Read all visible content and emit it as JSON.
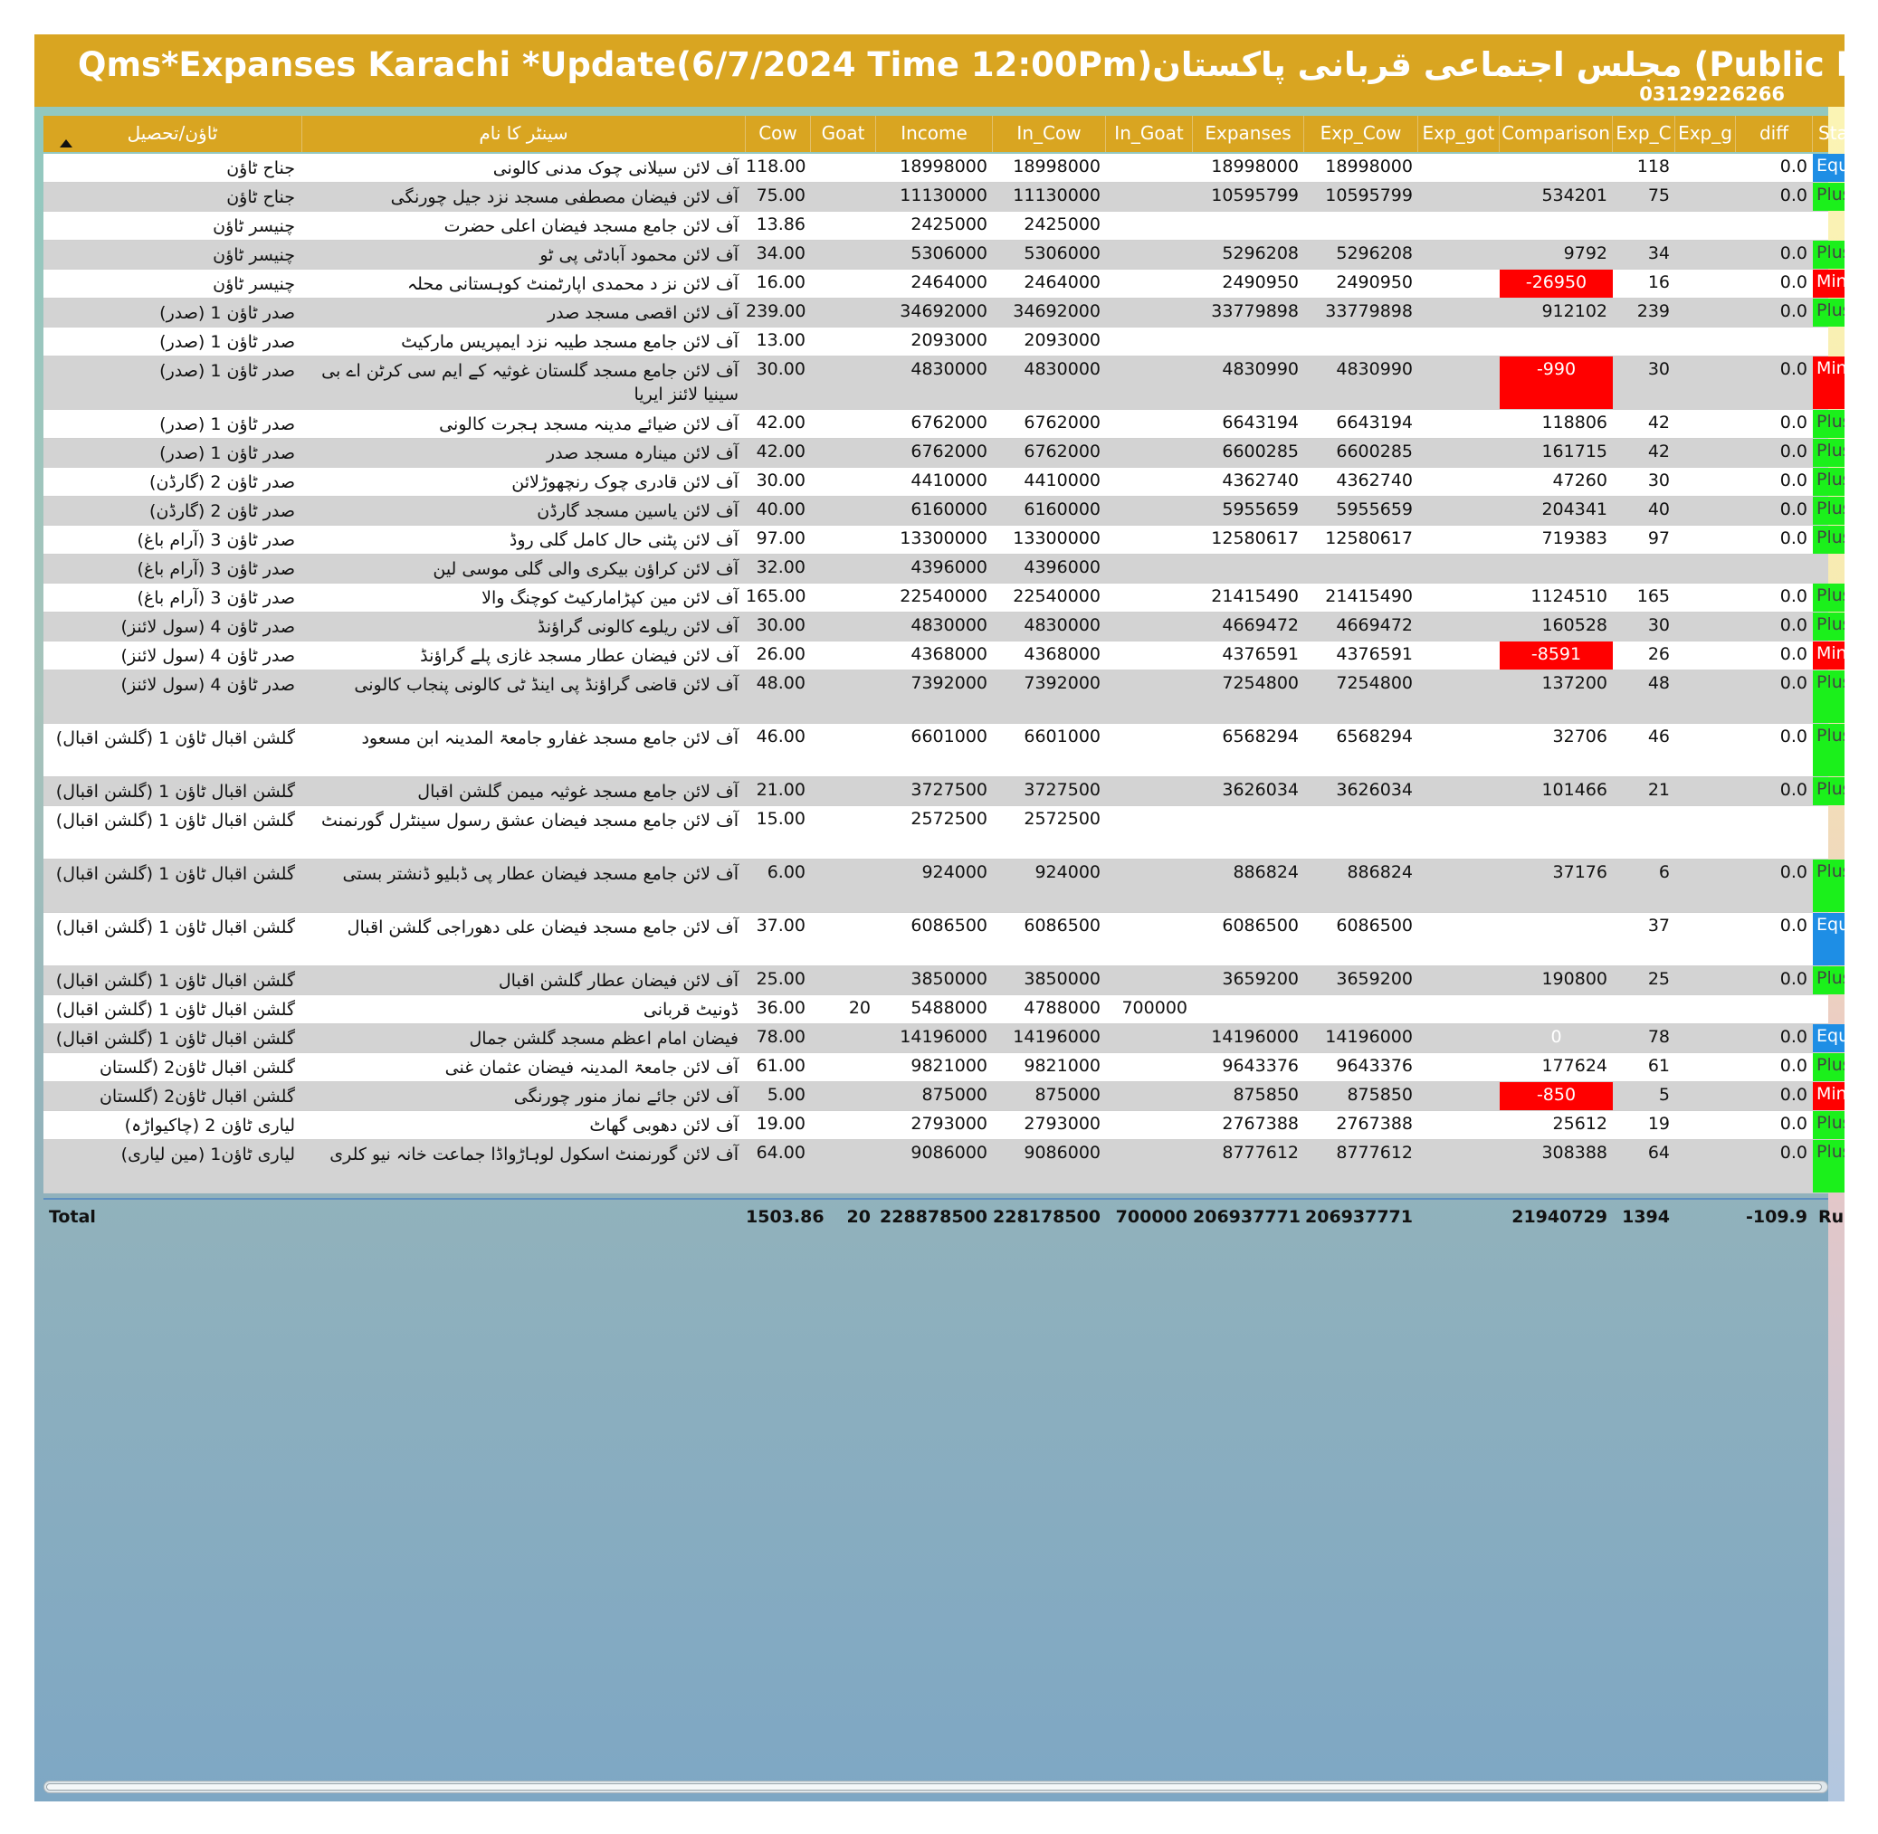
{
  "title": "Qms*Expanses Karachi  *Update(6/7/2024 Time 12:00Pm)مجلس اجتماعی قربانی پاکستان (Public Reports)*Mubeen Attari",
  "phone": "03129226266",
  "colors": {
    "header_bg": "#d9a521",
    "plus": "#1bf01b",
    "minus": "#ff0000",
    "equal": "#1e8ee5"
  },
  "columns": [
    {
      "key": "town",
      "label": "ٹاؤن/تحصیل"
    },
    {
      "key": "center",
      "label": "سینٹر کا نام"
    },
    {
      "key": "cow",
      "label": "Cow"
    },
    {
      "key": "goat",
      "label": "Goat"
    },
    {
      "key": "income",
      "label": "Income"
    },
    {
      "key": "in_cow",
      "label": "In_Cow"
    },
    {
      "key": "in_goat",
      "label": "In_Goat"
    },
    {
      "key": "expanses",
      "label": "Expanses"
    },
    {
      "key": "exp_cow",
      "label": "Exp_Cow"
    },
    {
      "key": "exp_got",
      "label": "Exp_got"
    },
    {
      "key": "comparison",
      "label": "Comparison"
    },
    {
      "key": "exp_c",
      "label": "Exp_C"
    },
    {
      "key": "exp_g",
      "label": "Exp_g"
    },
    {
      "key": "diff",
      "label": "diff"
    },
    {
      "key": "status",
      "label": "Status"
    }
  ],
  "rows": [
    {
      "town": "جناح ٹاؤن",
      "center": "آف لائن سیلانی چوک مدنی کالونی",
      "cow": "118.00",
      "goat": "",
      "income": "18998000",
      "in_cow": "18998000",
      "in_goat": "",
      "expanses": "18998000",
      "exp_cow": "18998000",
      "exp_got": "",
      "comparison": "",
      "exp_c": "118",
      "exp_g": "",
      "diff": "0.0",
      "status": "Equal"
    },
    {
      "town": "جناح ٹاؤن",
      "center": "آف لائن فیضان مصطفی مسجد نزد جیل چورنگی",
      "cow": "75.00",
      "goat": "",
      "income": "11130000",
      "in_cow": "11130000",
      "in_goat": "",
      "expanses": "10595799",
      "exp_cow": "10595799",
      "exp_got": "",
      "comparison": "534201",
      "exp_c": "75",
      "exp_g": "",
      "diff": "0.0",
      "status": "Plus"
    },
    {
      "town": "چنیسر ٹاؤن",
      "center": "آف لائن جامع مسجد فیضان اعلی حضرت",
      "cow": "13.86",
      "goat": "",
      "income": "2425000",
      "in_cow": "2425000",
      "in_goat": "",
      "expanses": "",
      "exp_cow": "",
      "exp_got": "",
      "comparison": "",
      "exp_c": "",
      "exp_g": "",
      "diff": "",
      "status": ""
    },
    {
      "town": "چنیسر ٹاؤن",
      "center": "آف لائن محمود آبادٹی پی ٹو",
      "cow": "34.00",
      "goat": "",
      "income": "5306000",
      "in_cow": "5306000",
      "in_goat": "",
      "expanses": "5296208",
      "exp_cow": "5296208",
      "exp_got": "",
      "comparison": "9792",
      "exp_c": "34",
      "exp_g": "",
      "diff": "0.0",
      "status": "Plus"
    },
    {
      "town": "چنیسر ٹاؤن",
      "center": "آف لائن نز د محمدی اپارٹمنٹ کوہستانی محلہ",
      "cow": "16.00",
      "goat": "",
      "income": "2464000",
      "in_cow": "2464000",
      "in_goat": "",
      "expanses": "2490950",
      "exp_cow": "2490950",
      "exp_got": "",
      "comparison": "-26950",
      "exp_c": "16",
      "exp_g": "",
      "diff": "0.0",
      "status": "Minus"
    },
    {
      "town": "صدر ٹاؤن 1 (صدر)",
      "center": "آف لائن اقصی مسجد صدر",
      "cow": "239.00",
      "goat": "",
      "income": "34692000",
      "in_cow": "34692000",
      "in_goat": "",
      "expanses": "33779898",
      "exp_cow": "33779898",
      "exp_got": "",
      "comparison": "912102",
      "exp_c": "239",
      "exp_g": "",
      "diff": "0.0",
      "status": "Plus"
    },
    {
      "town": "صدر ٹاؤن 1 (صدر)",
      "center": "آف لائن جامع مسجد طیبہ نزد ایمپریس مارکیٹ",
      "cow": "13.00",
      "goat": "",
      "income": "2093000",
      "in_cow": "2093000",
      "in_goat": "",
      "expanses": "",
      "exp_cow": "",
      "exp_got": "",
      "comparison": "",
      "exp_c": "",
      "exp_g": "",
      "diff": "",
      "status": ""
    },
    {
      "town": "صدر ٹاؤن 1 (صدر)",
      "center": "آف لائن جامع مسجد گلستان غوثیہ کے ایم سی کرٹن اے بی سینیا لائنز ایریا",
      "cow": "30.00",
      "goat": "",
      "income": "4830000",
      "in_cow": "4830000",
      "in_goat": "",
      "expanses": "4830990",
      "exp_cow": "4830990",
      "exp_got": "",
      "comparison": "-990",
      "exp_c": "30",
      "exp_g": "",
      "diff": "0.0",
      "status": "Minus"
    },
    {
      "town": "صدر ٹاؤن 1 (صدر)",
      "center": "آف لائن ضیائے مدینہ مسجد ہجرت کالونی",
      "cow": "42.00",
      "goat": "",
      "income": "6762000",
      "in_cow": "6762000",
      "in_goat": "",
      "expanses": "6643194",
      "exp_cow": "6643194",
      "exp_got": "",
      "comparison": "118806",
      "exp_c": "42",
      "exp_g": "",
      "diff": "0.0",
      "status": "Plus"
    },
    {
      "town": "صدر ٹاؤن 1 (صدر)",
      "center": "آف لائن مینارہ مسجد صدر",
      "cow": "42.00",
      "goat": "",
      "income": "6762000",
      "in_cow": "6762000",
      "in_goat": "",
      "expanses": "6600285",
      "exp_cow": "6600285",
      "exp_got": "",
      "comparison": "161715",
      "exp_c": "42",
      "exp_g": "",
      "diff": "0.0",
      "status": "Plus"
    },
    {
      "town": "صدر ٹاؤن 2 (گارڈن)",
      "center": "آف لائن قادری چوک رنچھوڑلائن",
      "cow": "30.00",
      "goat": "",
      "income": "4410000",
      "in_cow": "4410000",
      "in_goat": "",
      "expanses": "4362740",
      "exp_cow": "4362740",
      "exp_got": "",
      "comparison": "47260",
      "exp_c": "30",
      "exp_g": "",
      "diff": "0.0",
      "status": "Plus"
    },
    {
      "town": "صدر ٹاؤن 2 (گارڈن)",
      "center": "آف لائن یاسین مسجد گارڈن",
      "cow": "40.00",
      "goat": "",
      "income": "6160000",
      "in_cow": "6160000",
      "in_goat": "",
      "expanses": "5955659",
      "exp_cow": "5955659",
      "exp_got": "",
      "comparison": "204341",
      "exp_c": "40",
      "exp_g": "",
      "diff": "0.0",
      "status": "Plus"
    },
    {
      "town": "صدر ٹاؤن 3 (آرام باغ)",
      "center": "آف لائن پٹنی حال کامل گلی روڈ",
      "cow": "97.00",
      "goat": "",
      "income": "13300000",
      "in_cow": "13300000",
      "in_goat": "",
      "expanses": "12580617",
      "exp_cow": "12580617",
      "exp_got": "",
      "comparison": "719383",
      "exp_c": "97",
      "exp_g": "",
      "diff": "0.0",
      "status": "Plus"
    },
    {
      "town": "صدر ٹاؤن 3 (آرام باغ)",
      "center": "آف لائن کراؤن بیکری والی گلی موسی لین",
      "cow": "32.00",
      "goat": "",
      "income": "4396000",
      "in_cow": "4396000",
      "in_goat": "",
      "expanses": "",
      "exp_cow": "",
      "exp_got": "",
      "comparison": "",
      "exp_c": "",
      "exp_g": "",
      "diff": "",
      "status": ""
    },
    {
      "town": "صدر ٹاؤن 3 (آرام باغ)",
      "center": "آف لائن مین کپڑامارکیٹ کوچنگ والا",
      "cow": "165.00",
      "goat": "",
      "income": "22540000",
      "in_cow": "22540000",
      "in_goat": "",
      "expanses": "21415490",
      "exp_cow": "21415490",
      "exp_got": "",
      "comparison": "1124510",
      "exp_c": "165",
      "exp_g": "",
      "diff": "0.0",
      "status": "Plus"
    },
    {
      "town": "صدر ٹاؤن 4 (سول لائنز)",
      "center": "آف لائن ریلوے کالونی گراؤنڈ",
      "cow": "30.00",
      "goat": "",
      "income": "4830000",
      "in_cow": "4830000",
      "in_goat": "",
      "expanses": "4669472",
      "exp_cow": "4669472",
      "exp_got": "",
      "comparison": "160528",
      "exp_c": "30",
      "exp_g": "",
      "diff": "0.0",
      "status": "Plus"
    },
    {
      "town": "صدر ٹاؤن 4 (سول لائنز)",
      "center": "آف لائن فیضان عطار مسجد غازی پلے گراؤنڈ",
      "cow": "26.00",
      "goat": "",
      "income": "4368000",
      "in_cow": "4368000",
      "in_goat": "",
      "expanses": "4376591",
      "exp_cow": "4376591",
      "exp_got": "",
      "comparison": "-8591",
      "exp_c": "26",
      "exp_g": "",
      "diff": "0.0",
      "status": "Minus"
    },
    {
      "town": "صدر ٹاؤن 4 (سول لائنز)",
      "center": "آف لائن قاضی گراؤنڈ پی اینڈ ٹی کالونی پنجاب کالونی",
      "cow": "48.00",
      "goat": "",
      "income": "7392000",
      "in_cow": "7392000",
      "in_goat": "",
      "expanses": "7254800",
      "exp_cow": "7254800",
      "exp_got": "",
      "comparison": "137200",
      "exp_c": "48",
      "exp_g": "",
      "diff": "0.0",
      "status": "Plus"
    },
    {
      "town": "گلشن اقبال ٹاؤن 1 (گلشن اقبال)",
      "center": "آف لائن جامع مسجد غفارو جامعۃ المدینہ ابن مسعود",
      "cow": "46.00",
      "goat": "",
      "income": "6601000",
      "in_cow": "6601000",
      "in_goat": "",
      "expanses": "6568294",
      "exp_cow": "6568294",
      "exp_got": "",
      "comparison": "32706",
      "exp_c": "46",
      "exp_g": "",
      "diff": "0.0",
      "status": "Plus"
    },
    {
      "town": "گلشن اقبال ٹاؤن 1 (گلشن اقبال)",
      "center": "آف لائن جامع مسجد غوثیہ میمن گلشن اقبال",
      "cow": "21.00",
      "goat": "",
      "income": "3727500",
      "in_cow": "3727500",
      "in_goat": "",
      "expanses": "3626034",
      "exp_cow": "3626034",
      "exp_got": "",
      "comparison": "101466",
      "exp_c": "21",
      "exp_g": "",
      "diff": "0.0",
      "status": "Plus"
    },
    {
      "town": "گلشن اقبال ٹاؤن 1 (گلشن اقبال)",
      "center": "آف لائن جامع مسجد فیضان عشق رسول سینٹرل گورنمنٹ",
      "cow": "15.00",
      "goat": "",
      "income": "2572500",
      "in_cow": "2572500",
      "in_goat": "",
      "expanses": "",
      "exp_cow": "",
      "exp_got": "",
      "comparison": "",
      "exp_c": "",
      "exp_g": "",
      "diff": "",
      "status": ""
    },
    {
      "town": "گلشن اقبال ٹاؤن 1 (گلشن اقبال)",
      "center": "آف لائن جامع مسجد فیضان عطار پی ڈبلیو ڈنشتر بستی",
      "cow": "6.00",
      "goat": "",
      "income": "924000",
      "in_cow": "924000",
      "in_goat": "",
      "expanses": "886824",
      "exp_cow": "886824",
      "exp_got": "",
      "comparison": "37176",
      "exp_c": "6",
      "exp_g": "",
      "diff": "0.0",
      "status": "Plus"
    },
    {
      "town": "گلشن اقبال ٹاؤن 1 (گلشن اقبال)",
      "center": "آف لائن جامع مسجد فیضان علی دھوراجی گلشن اقبال",
      "cow": "37.00",
      "goat": "",
      "income": "6086500",
      "in_cow": "6086500",
      "in_goat": "",
      "expanses": "6086500",
      "exp_cow": "6086500",
      "exp_got": "",
      "comparison": "",
      "exp_c": "37",
      "exp_g": "",
      "diff": "0.0",
      "status": "Equal"
    },
    {
      "town": "گلشن اقبال ٹاؤن 1 (گلشن اقبال)",
      "center": "آف لائن فیضان عطار گلشن اقبال",
      "cow": "25.00",
      "goat": "",
      "income": "3850000",
      "in_cow": "3850000",
      "in_goat": "",
      "expanses": "3659200",
      "exp_cow": "3659200",
      "exp_got": "",
      "comparison": "190800",
      "exp_c": "25",
      "exp_g": "",
      "diff": "0.0",
      "status": "Plus"
    },
    {
      "town": "گلشن اقبال ٹاؤن 1 (گلشن اقبال)",
      "center": "ڈونیٹ قربانی",
      "cow": "36.00",
      "goat": "20",
      "income": "5488000",
      "in_cow": "4788000",
      "in_goat": "700000",
      "expanses": "",
      "exp_cow": "",
      "exp_got": "",
      "comparison": "",
      "exp_c": "",
      "exp_g": "",
      "diff": "",
      "status": ""
    },
    {
      "town": "گلشن اقبال ٹاؤن 1 (گلشن اقبال)",
      "center": "فیضان امام اعظم مسجد گلشن جمال",
      "cow": "78.00",
      "goat": "",
      "income": "14196000",
      "in_cow": "14196000",
      "in_goat": "",
      "expanses": "14196000",
      "exp_cow": "14196000",
      "exp_got": "",
      "comparison": "0",
      "exp_c": "78",
      "exp_g": "",
      "diff": "0.0",
      "status": "Equal"
    },
    {
      "town": "گلشن اقبال ٹاؤن2 (گلستان جوہر)",
      "center": "آف لائن جامعۃ المدینہ فیضان عثمان غنی",
      "cow": "61.00",
      "goat": "",
      "income": "9821000",
      "in_cow": "9821000",
      "in_goat": "",
      "expanses": "9643376",
      "exp_cow": "9643376",
      "exp_got": "",
      "comparison": "177624",
      "exp_c": "61",
      "exp_g": "",
      "diff": "0.0",
      "status": "Plus"
    },
    {
      "town": "گلشن اقبال ٹاؤن2 (گلستان جوہر)",
      "center": "آف لائن جائے نماز منور چورنگی",
      "cow": "5.00",
      "goat": "",
      "income": "875000",
      "in_cow": "875000",
      "in_goat": "",
      "expanses": "875850",
      "exp_cow": "875850",
      "exp_got": "",
      "comparison": "-850",
      "exp_c": "5",
      "exp_g": "",
      "diff": "0.0",
      "status": "Minus"
    },
    {
      "town": "لیاری ٹاؤن 2 (چاکیواڑہ)",
      "center": "آف لائن دھوبی گھاٹ",
      "cow": "19.00",
      "goat": "",
      "income": "2793000",
      "in_cow": "2793000",
      "in_goat": "",
      "expanses": "2767388",
      "exp_cow": "2767388",
      "exp_got": "",
      "comparison": "25612",
      "exp_c": "19",
      "exp_g": "",
      "diff": "0.0",
      "status": "Plus"
    },
    {
      "town": "لیاری ٹاؤن1 (مین لیاری)",
      "center": "آف لائن گورنمنٹ اسکول لوہاڑواڈا جماعت خانہ نیو کلری",
      "cow": "64.00",
      "goat": "",
      "income": "9086000",
      "in_cow": "9086000",
      "in_goat": "",
      "expanses": "8777612",
      "exp_cow": "8777612",
      "exp_got": "",
      "comparison": "308388",
      "exp_c": "64",
      "exp_g": "",
      "diff": "0.0",
      "status": "Plus"
    }
  ],
  "total": {
    "town": "Total",
    "center": "",
    "cow": "1503.86",
    "goat": "20",
    "income": "228878500",
    "in_cow": "228178500",
    "in_goat": "700000",
    "expanses": "206937771",
    "exp_cow": "206937771",
    "exp_got": "",
    "comparison": "21940729",
    "exp_c": "1394",
    "exp_g": "",
    "diff": "-109.9",
    "status": "Run"
  }
}
